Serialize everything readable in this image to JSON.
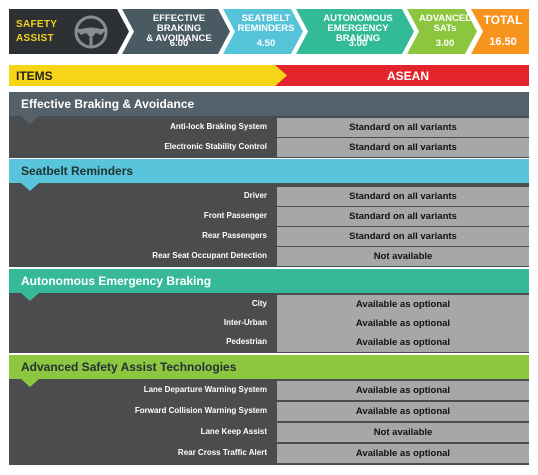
{
  "header": {
    "title_line1": "SAFETY",
    "title_line2": "ASSIST",
    "icon": "steering-wheel-icon",
    "segments": [
      {
        "name_line1": "EFFECTIVE BRAKING",
        "name_line2": "& AVOIDANCE",
        "score": "6.00",
        "color": "#4a5a63"
      },
      {
        "name_line1": "SEATBELT",
        "name_line2": "REMINDERS",
        "score": "4.50",
        "color": "#55c4d9"
      },
      {
        "name_line1": "AUTONOMOUS",
        "name_line2": "EMERGENCY BRAKING",
        "score": "3.00",
        "color": "#33bb97"
      },
      {
        "name_line1": "ADVANCED",
        "name_line2": "SATs",
        "score": "3.00",
        "color": "#8cc63f"
      }
    ],
    "total": {
      "name": "TOTAL",
      "score": "16.50",
      "color": "#f7941d"
    }
  },
  "table": {
    "col_items": "ITEMS",
    "col_region": "ASEAN",
    "sections": [
      {
        "title": "Effective Braking & Avoidance",
        "color": "#54616a",
        "rows": [
          {
            "label": "Anti-lock Braking System",
            "value": "Standard on all variants"
          },
          {
            "label": "Electronic Stability Control",
            "value": "Standard on all variants"
          }
        ]
      },
      {
        "title": "Seatbelt Reminders",
        "color": "#58c5da",
        "rows": [
          {
            "label": "Driver",
            "value": "Standard on all variants"
          },
          {
            "label": "Front Passenger",
            "value": "Standard on all variants"
          },
          {
            "label": "Rear Passengers",
            "value": "Standard on all variants"
          },
          {
            "label": "Rear Seat Occupant Detection",
            "value": "Not available"
          }
        ]
      },
      {
        "title": "Autonomous Emergency Braking",
        "color": "#36b998",
        "rows": [
          {
            "label": "City",
            "value": "Available as optional"
          },
          {
            "label": "Inter-Urban",
            "value": "Available as optional"
          },
          {
            "label": "Pedestrian",
            "value": "Available as optional"
          }
        ]
      },
      {
        "title": "Advanced Safety Assist Technologies",
        "color": "#8dc641",
        "rows": [
          {
            "label": "Lane Departure Warning System",
            "value": "Available as optional"
          },
          {
            "label": "Forward Collision Warning System",
            "value": "Available as optional"
          },
          {
            "label": "Lane Keep Assist",
            "value": "Not available"
          },
          {
            "label": "Rear Cross Traffic Alert",
            "value": "Available as optional"
          }
        ]
      }
    ]
  }
}
